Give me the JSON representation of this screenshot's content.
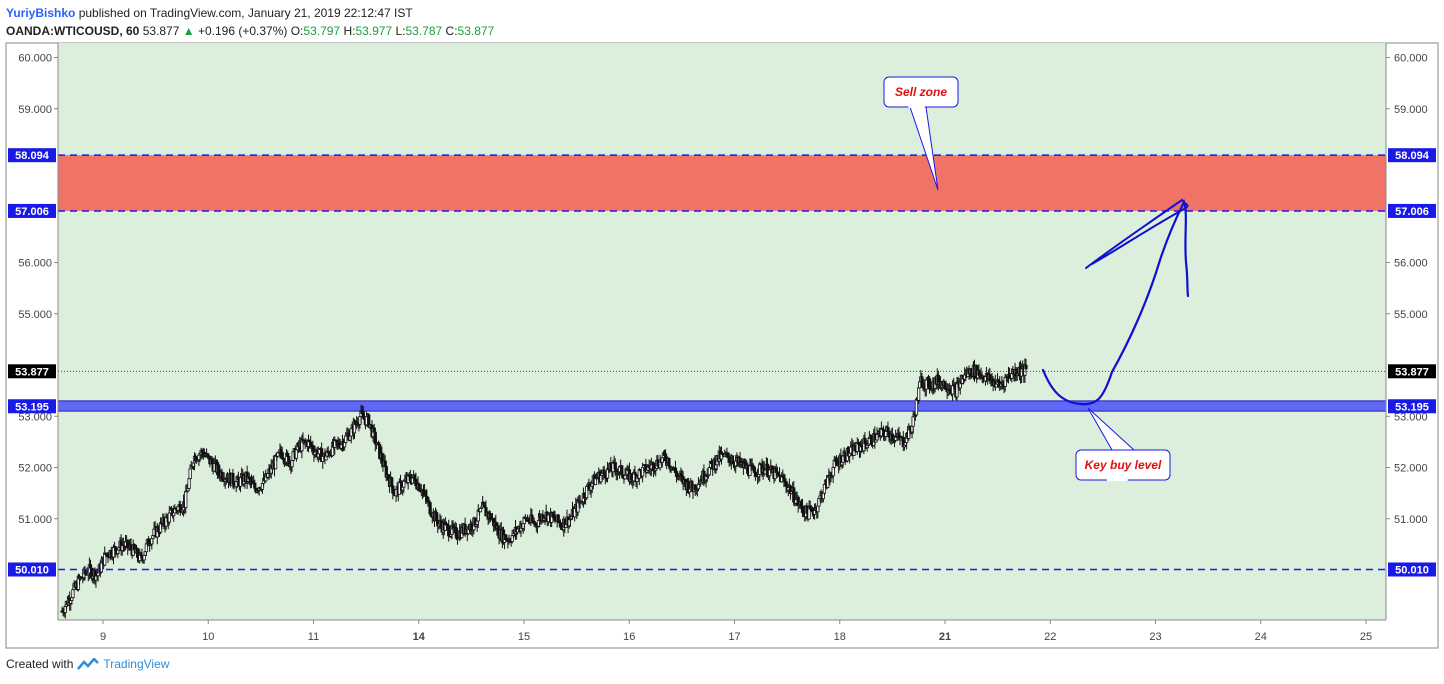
{
  "header": {
    "author": "YuriyBishko",
    "published_text": "published on TradingView.com, January 21, 2019 22:12:47 IST",
    "symbol": "OANDA:WTICOUSD, 60",
    "last": "53.877",
    "change": "+0.196 (+0.37%)",
    "o_label": "O:",
    "o": "53.797",
    "h_label": "H:",
    "h": "53.977",
    "l_label": "L:",
    "l": "53.787",
    "c_label": "C:",
    "c": "53.877"
  },
  "footer": {
    "created_with": "Created with",
    "brand": "TradingView"
  },
  "colors": {
    "plot_bg": "#dcefdc",
    "sell_zone": "#ef7367",
    "buy_band": "#3a3aff",
    "level_line": "#1a1ae6",
    "annotation_border": "#1a1ae6",
    "annotation_text": "#e01010",
    "candle": "#111111",
    "drawing": "#1010d0"
  },
  "chart_data": {
    "type": "candlestick",
    "symbol": "OANDA:WTICOUSD",
    "interval": "60",
    "ylim": [
      49.0,
      60.3
    ],
    "y_ticks": [
      "60.000",
      "59.000",
      "56.000",
      "55.000",
      "53.000",
      "52.000",
      "51.000"
    ],
    "x_ticks": [
      "9",
      "10",
      "11",
      "14",
      "15",
      "16",
      "17",
      "18",
      "21",
      "22",
      "23",
      "24",
      "25"
    ],
    "bold_x_ticks": [
      "14",
      "21"
    ],
    "levels": [
      {
        "value": 58.094,
        "label": "58.094"
      },
      {
        "value": 57.006,
        "label": "57.006"
      },
      {
        "value": 50.01,
        "label": "50.010"
      }
    ],
    "current_price": {
      "value": 53.877,
      "label": "53.877"
    },
    "buy_level": {
      "value": 53.195,
      "label": "53.195",
      "band": [
        53.1,
        53.3
      ]
    },
    "sell_zone": [
      57.006,
      58.094
    ],
    "annotations": [
      {
        "text": "Sell zone"
      },
      {
        "text": "Key buy level"
      }
    ],
    "close_path": [
      49.2,
      49.5,
      49.8,
      50.0,
      49.9,
      50.3,
      50.4,
      50.5,
      50.4,
      50.2,
      50.6,
      50.8,
      51.0,
      51.2,
      51.3,
      52.2,
      52.3,
      52.1,
      51.9,
      51.8,
      51.7,
      51.8,
      51.6,
      51.7,
      52.0,
      52.3,
      52.1,
      52.4,
      52.5,
      52.3,
      52.2,
      52.4,
      52.5,
      52.7,
      53.0,
      52.9,
      52.4,
      51.9,
      51.5,
      51.7,
      51.8,
      51.6,
      51.2,
      50.9,
      50.8,
      50.7,
      50.8,
      50.9,
      51.2,
      51.0,
      50.7,
      50.6,
      50.8,
      51.0,
      50.9,
      51.1,
      51.0,
      50.9,
      51.0,
      51.3,
      51.6,
      51.8,
      51.9,
      52.0,
      51.9,
      51.8,
      51.9,
      52.0,
      52.1,
      52.2,
      51.9,
      51.7,
      51.6,
      51.8,
      52.0,
      52.2,
      52.2,
      52.1,
      52.0,
      51.9,
      52.0,
      51.9,
      51.8,
      51.6,
      51.3,
      51.1,
      51.2,
      51.6,
      52.0,
      52.2,
      52.3,
      52.4,
      52.5,
      52.6,
      52.7,
      52.6,
      52.5,
      52.8,
      53.7,
      53.6,
      53.7,
      53.6,
      53.5,
      53.8,
      53.9,
      53.8,
      53.7,
      53.6,
      53.8,
      53.9,
      53.88
    ],
    "projection": "bullish: dip to key buy level, rally into sell zone, then reversal"
  }
}
